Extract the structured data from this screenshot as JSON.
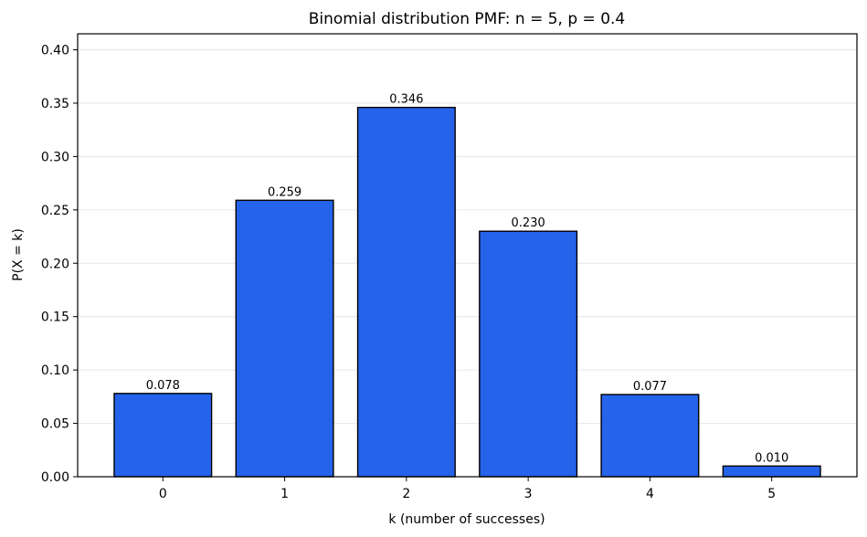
{
  "chart_data": {
    "type": "bar",
    "title": "Binomial distribution PMF: n = 5, p = 0.4",
    "xlabel": "k (number of successes)",
    "ylabel": "P(X = k)",
    "categories": [
      "0",
      "1",
      "2",
      "3",
      "4",
      "5"
    ],
    "values": [
      0.078,
      0.259,
      0.346,
      0.23,
      0.077,
      0.01
    ],
    "data_labels": [
      "0.078",
      "0.259",
      "0.346",
      "0.230",
      "0.077",
      "0.010"
    ],
    "ylim": [
      0,
      0.415
    ],
    "yticks": [
      0.0,
      0.05,
      0.1,
      0.15,
      0.2,
      0.25,
      0.3,
      0.35,
      0.4
    ],
    "ytick_labels": [
      "0.00",
      "0.05",
      "0.10",
      "0.15",
      "0.20",
      "0.25",
      "0.30",
      "0.35",
      "0.40"
    ],
    "grid": "y-axis, light",
    "legend": "none",
    "bar_color": "#2563eb",
    "edge_color": "#000000"
  }
}
